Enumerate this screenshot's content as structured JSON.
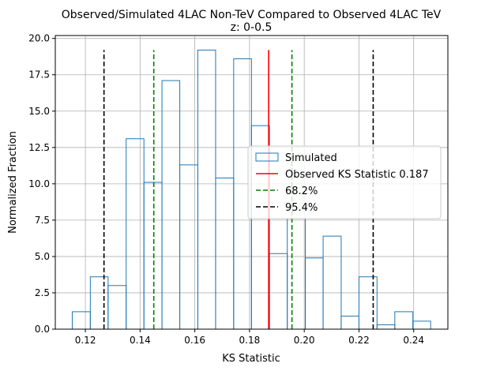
{
  "chart_data": {
    "type": "bar",
    "title": "Observed/Simulated 4LAC Non-TeV Compared to Observed 4LAC TeV",
    "subtitle": "z: 0-0.5",
    "xlabel": "KS Statistic",
    "ylabel": "Normalized Fraction",
    "xlim": [
      0.109,
      0.2525
    ],
    "ylim": [
      0,
      20.2
    ],
    "grid": true,
    "xticks": [
      0.12,
      0.14,
      0.16,
      0.18,
      0.2,
      0.22,
      0.24
    ],
    "xtick_labels": [
      "0.12",
      "0.14",
      "0.16",
      "0.18",
      "0.20",
      "0.22",
      "0.24"
    ],
    "yticks": [
      0.0,
      2.5,
      5.0,
      7.5,
      10.0,
      12.5,
      15.0,
      17.5,
      20.0
    ],
    "ytick_labels": [
      "0.0",
      "2.5",
      "5.0",
      "7.5",
      "10.0",
      "12.5",
      "15.0",
      "17.5",
      "20.0"
    ],
    "histogram": {
      "name": "Simulated",
      "color": "#1f77b4",
      "bin_edges": [
        0.1152,
        0.1218,
        0.1283,
        0.1349,
        0.1414,
        0.148,
        0.1545,
        0.1611,
        0.1676,
        0.1742,
        0.1807,
        0.1873,
        0.1938,
        0.2004,
        0.2069,
        0.2135,
        0.22,
        0.2266,
        0.2331,
        0.2397,
        0.2462
      ],
      "values": [
        1.2,
        3.6,
        3.0,
        13.1,
        10.1,
        17.1,
        11.3,
        19.2,
        10.4,
        18.6,
        14.0,
        5.2,
        7.6,
        4.9,
        6.4,
        0.9,
        3.6,
        0.3,
        1.2,
        0.55
      ]
    },
    "vlines": [
      {
        "name": "Observed KS Statistic 0.187",
        "x": 0.187,
        "color": "#ff0000",
        "style": "solid",
        "ymax": 19.2
      },
      {
        "name": "68.2%",
        "x": 0.145,
        "color": "#008000",
        "style": "dashed",
        "ymax": 19.2
      },
      {
        "name": "68.2%",
        "x": 0.1955,
        "color": "#008000",
        "style": "dashed",
        "ymax": 19.2
      },
      {
        "name": "95.4%",
        "x": 0.1268,
        "color": "#000000",
        "style": "dashed",
        "ymax": 19.2
      },
      {
        "name": "95.4%",
        "x": 0.2252,
        "color": "#000000",
        "style": "dashed",
        "ymax": 19.2
      }
    ],
    "legend": {
      "position": "center-right",
      "entries": [
        {
          "label": "Simulated",
          "kind": "patch",
          "color": "#1f77b4"
        },
        {
          "label": "Observed KS Statistic 0.187",
          "kind": "line",
          "color": "#ff0000",
          "style": "solid"
        },
        {
          "label": "68.2%",
          "kind": "line",
          "color": "#008000",
          "style": "dashed"
        },
        {
          "label": "95.4%",
          "kind": "line",
          "color": "#000000",
          "style": "dashed"
        }
      ]
    }
  }
}
